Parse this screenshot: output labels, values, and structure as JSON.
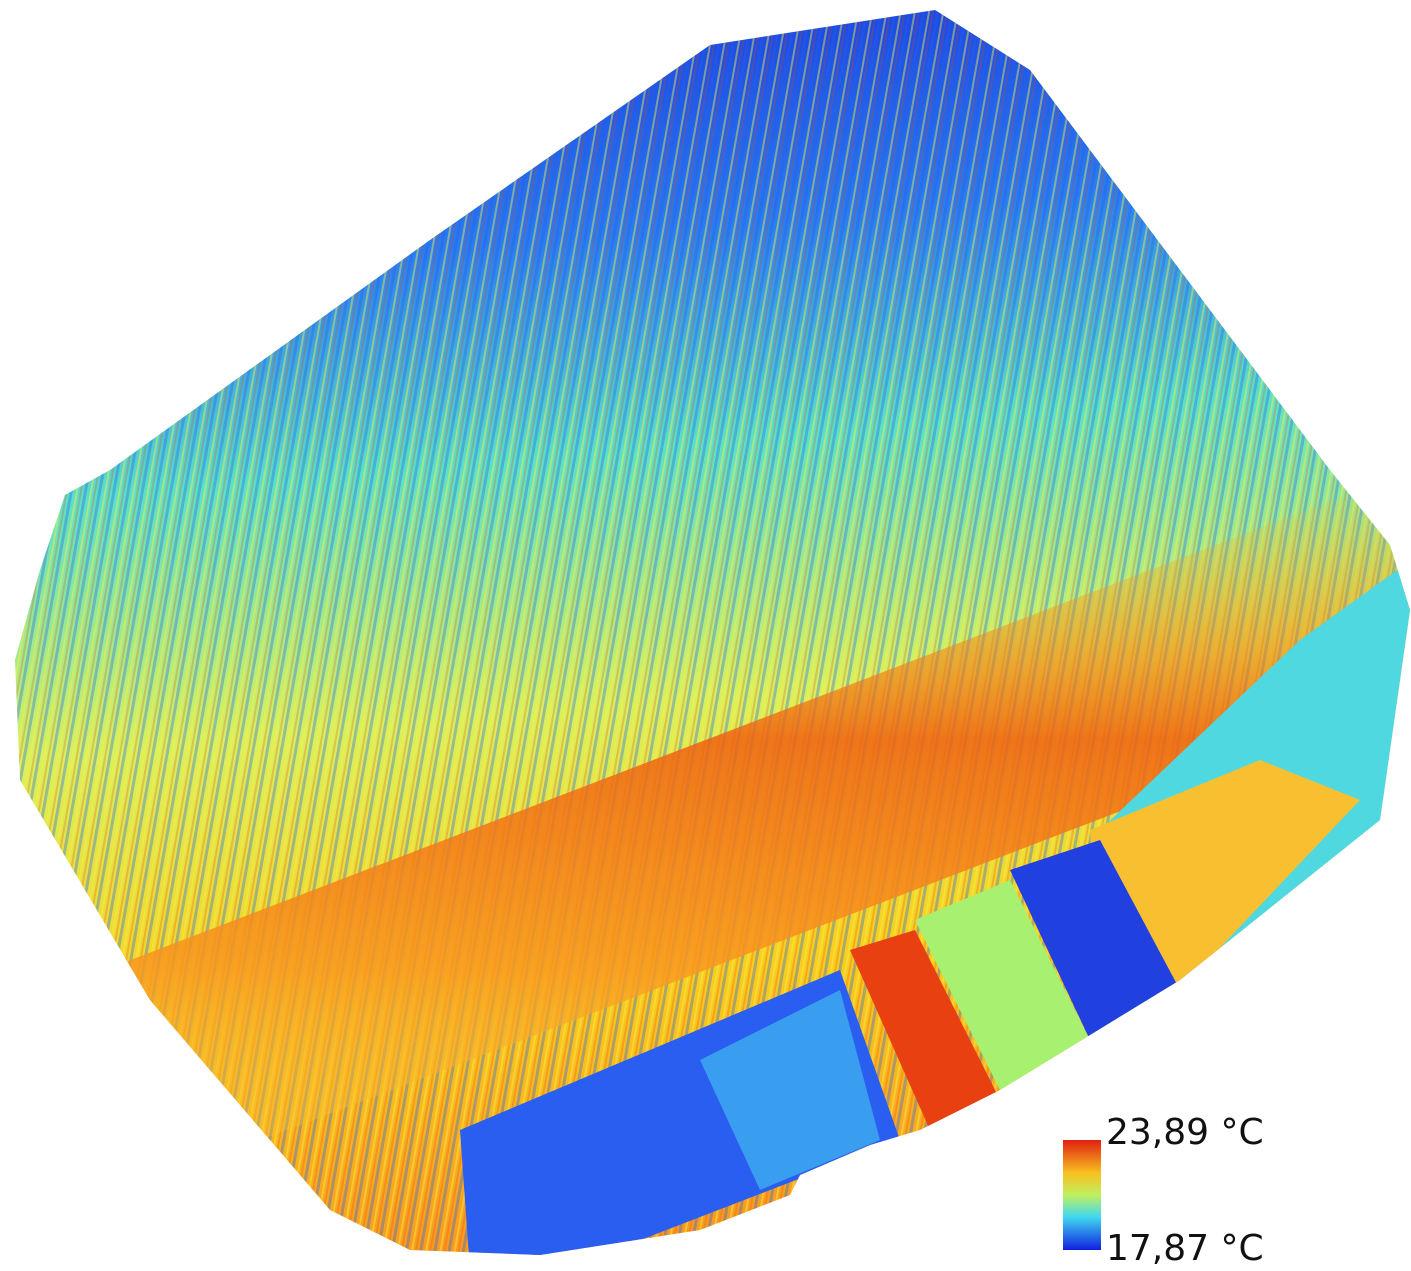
{
  "legend": {
    "max_label": "23,89 °C",
    "min_label": "17,87 °C"
  }
}
